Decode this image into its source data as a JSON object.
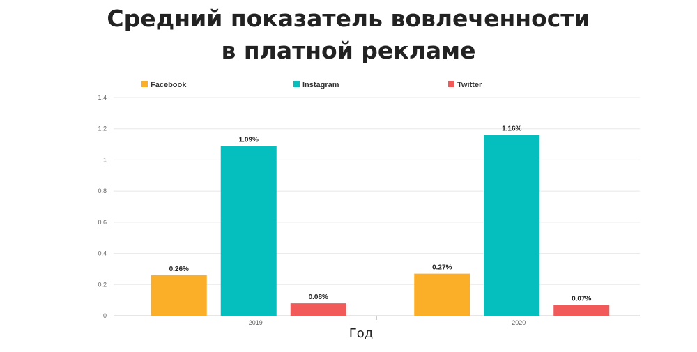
{
  "chart_data": {
    "type": "bar",
    "title_lines": [
      "Средний показатель вовлеченности",
      "в платной рекламе"
    ],
    "xlabel": "Год",
    "ylabel": "",
    "categories": [
      "2019",
      "2020"
    ],
    "ylim": [
      0,
      1.4
    ],
    "yticks": [
      "0",
      "0.2",
      "0.4",
      "0.6",
      "0.8",
      "1",
      "1.2",
      "1.4"
    ],
    "grid": true,
    "legend_position": "top",
    "series": [
      {
        "name": "Facebook",
        "color": "#FBAE28",
        "values": [
          0.26,
          0.27
        ],
        "labels": [
          "0.26%",
          "0.27%"
        ]
      },
      {
        "name": "Instagram",
        "color": "#05BEBE",
        "values": [
          1.09,
          1.16
        ],
        "labels": [
          "1.09%",
          "1.16%"
        ]
      },
      {
        "name": "Twitter",
        "color": "#F25A5A",
        "values": [
          0.08,
          0.07
        ],
        "labels": [
          "0.08%",
          "0.07%"
        ]
      }
    ]
  }
}
